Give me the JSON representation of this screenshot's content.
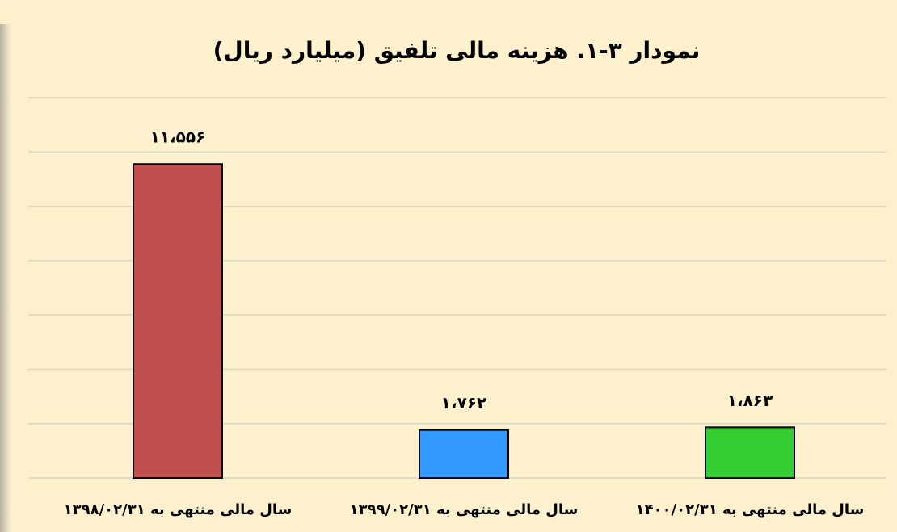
{
  "chart_data": {
    "type": "bar",
    "title": "نمودار ۳-۱. هزینه مالی تلفیق (میلیارد ریال)",
    "categories": [
      "سال مالی منتهی به ۱۳۹۸/۰۲/۳۱",
      "سال مالی منتهی به ۱۳۹۹/۰۲/۳۱",
      "سال مالی منتهی به ۱۴۰۰/۰۲/۳۱"
    ],
    "values": [
      11556,
      1762,
      1863
    ],
    "value_labels": [
      "۱۱،۵۵۶",
      "۱،۷۶۲",
      "۱،۸۶۳"
    ],
    "colors": [
      "#c0504d",
      "#3399ff",
      "#33cc33"
    ],
    "ylim": [
      0,
      14000
    ],
    "yticks": [
      0,
      2000,
      4000,
      6000,
      8000,
      10000,
      12000,
      14000
    ],
    "grid": true
  }
}
